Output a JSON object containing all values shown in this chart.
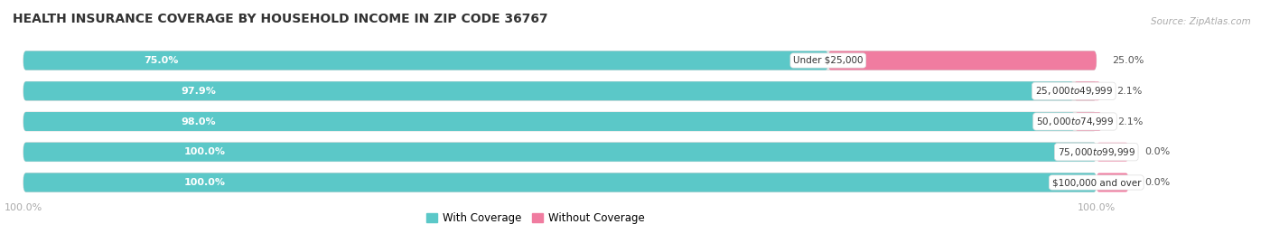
{
  "title": "HEALTH INSURANCE COVERAGE BY HOUSEHOLD INCOME IN ZIP CODE 36767",
  "source": "Source: ZipAtlas.com",
  "categories": [
    "Under $25,000",
    "$25,000 to $49,999",
    "$50,000 to $74,999",
    "$75,000 to $99,999",
    "$100,000 and over"
  ],
  "with_coverage": [
    75.0,
    97.9,
    98.0,
    100.0,
    100.0
  ],
  "without_coverage": [
    25.0,
    2.1,
    2.1,
    0.0,
    0.0
  ],
  "color_with": "#5bc8c8",
  "color_without": "#f07ca0",
  "bar_bg": "#ebebeb",
  "bar_height": 0.62,
  "figsize": [
    14.06,
    2.69
  ],
  "dpi": 100,
  "bar_max": 100,
  "legend_with": "With Coverage",
  "legend_without": "Without Coverage"
}
